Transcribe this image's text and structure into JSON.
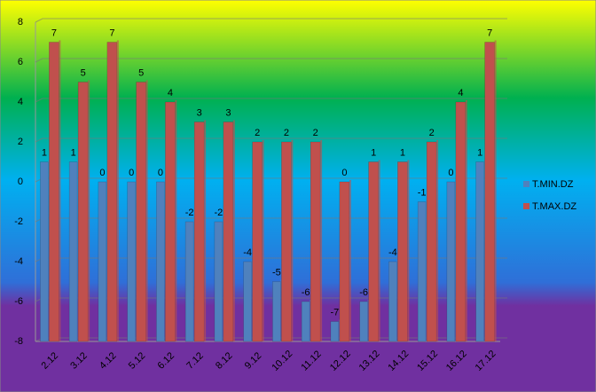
{
  "chart_data": {
    "type": "bar",
    "categories": [
      "2.12",
      "3.12",
      "4.12",
      "5.12",
      "6.12",
      "7.12",
      "8.12",
      "9.12",
      "10.12",
      "11.12",
      "12.12",
      "13.12",
      "14.12",
      "15.12",
      "16.12",
      "17.12"
    ],
    "series": [
      {
        "name": "T.MIN.DZ",
        "color": "#4f81bd",
        "values": [
          1,
          1,
          0,
          0,
          0,
          -2,
          -2,
          -4,
          -5,
          -6,
          -7,
          -6,
          -4,
          -1,
          0,
          1
        ]
      },
      {
        "name": "T.MAX.DZ",
        "color": "#c0504d",
        "values": [
          7,
          5,
          7,
          5,
          4,
          3,
          3,
          2,
          2,
          2,
          0,
          1,
          1,
          2,
          4,
          7
        ]
      }
    ],
    "ylim": [
      -8,
      8
    ],
    "yticks": [
      -8,
      -6,
      -4,
      -2,
      0,
      2,
      4,
      6,
      8
    ],
    "grid": true,
    "legend": "right"
  }
}
